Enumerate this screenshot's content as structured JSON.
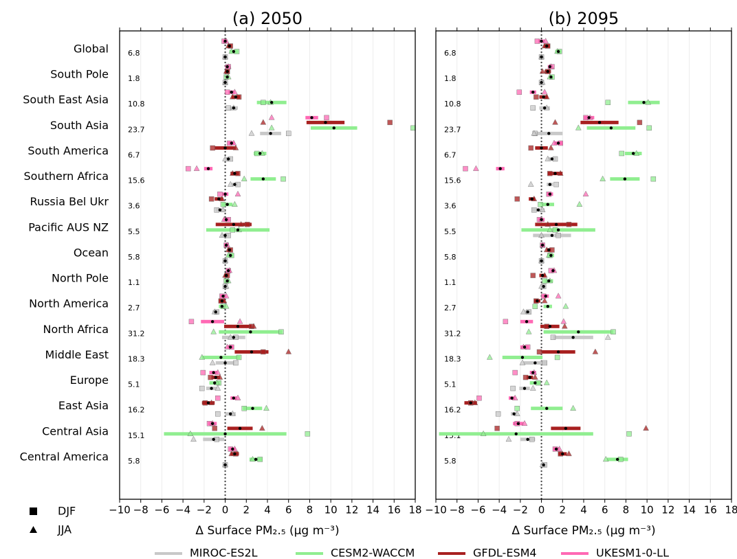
{
  "chart_data": [
    {
      "type": "dot_range",
      "title": "(a) 2050",
      "xlabel": "Δ Surface PM₂.₅ (μg m⁻³)",
      "djf_label": "DJF",
      "jja_label": "JJA",
      "categories": [
        "Global",
        "South Pole",
        "South East Asia",
        "South Asia",
        "South America",
        "Southern Africa",
        "Russia Bel Ukr",
        "Pacific AUS NZ",
        "Ocean",
        "North Pole",
        "North America",
        "North Africa",
        "Middle East",
        "Europe",
        "East Asia",
        "Central Asia",
        "Central America"
      ],
      "region_values": [
        6.8,
        1.8,
        10.8,
        23.7,
        6.7,
        15.6,
        3.6,
        5.5,
        5.8,
        1.1,
        2.7,
        31.2,
        18.3,
        5.1,
        16.2,
        15.1,
        5.8
      ],
      "xlim": [
        -10,
        18
      ],
      "xticks": [
        {
          "value": -10,
          "label": "−10"
        },
        {
          "value": -8,
          "label": "−8"
        },
        {
          "value": -6,
          "label": "−6"
        },
        {
          "value": -4,
          "label": "−4"
        },
        {
          "value": -2,
          "label": "−2"
        },
        0,
        2,
        4,
        6,
        8,
        10,
        12,
        14,
        16,
        18
      ],
      "series": [
        {
          "name": "MIROC-ES2L",
          "color": "#c8c8c8",
          "values": [
            0,
            0,
            0.8,
            4.3,
            0.3,
            0.9,
            -0.5,
            0,
            0,
            0,
            -0.9,
            0.8,
            0,
            -1.3,
            0.5,
            -1.1,
            0
          ],
          "errors": [
            0.2,
            0.1,
            0.4,
            1,
            0.3,
            0.3,
            0.4,
            0.4,
            0.2,
            0.1,
            0.3,
            1.1,
            0.9,
            0.5,
            0.5,
            1,
            0.1
          ],
          "djf": [
            0,
            0,
            0.3,
            6,
            0.5,
            1.2,
            -0.8,
            0.3,
            0,
            0,
            -0.8,
            1,
            1,
            -2.2,
            -0.7,
            -0.8,
            0
          ],
          "jja": [
            0,
            0,
            0.8,
            2.5,
            0,
            0.5,
            -0.2,
            -0.3,
            0,
            0.1,
            -1,
            0.5,
            -1.2,
            -0.7,
            0.7,
            -3,
            0
          ]
        },
        {
          "name": "CESM2-WACCM",
          "color": "#90ee90",
          "values": [
            0.8,
            0.2,
            4.4,
            10.3,
            3.3,
            3.6,
            0.2,
            1.2,
            0.5,
            0.2,
            -0.3,
            2.4,
            -0.4,
            -1,
            2.6,
            0,
            2.9
          ],
          "errors": [
            0.4,
            0.1,
            1.4,
            2.2,
            0.6,
            1.2,
            0.5,
            3,
            0.3,
            0.2,
            0.3,
            3,
            1.8,
            0.5,
            0.9,
            5.8,
            0.6
          ],
          "djf": [
            1.1,
            0.1,
            3.6,
            17.8,
            3,
            5.5,
            -0.2,
            0.7,
            0.6,
            0.1,
            -0.2,
            5.3,
            1.3,
            -0.6,
            1.8,
            7.8,
            3.3
          ],
          "jja": [
            0.6,
            0.3,
            4.3,
            4.4,
            3.5,
            1.8,
            0.9,
            1.3,
            0.3,
            0.3,
            0.1,
            -1.1,
            -2.2,
            -0.8,
            3.9,
            -3.3,
            2.6
          ]
        },
        {
          "name": "GFDL-ESM4",
          "color": "#a82020",
          "values": [
            0.4,
            0.2,
            1,
            9.5,
            0,
            0.9,
            -0.6,
            0.8,
            0.4,
            0.1,
            -0.3,
            1.2,
            2.5,
            -0.9,
            -1.6,
            1.4,
            0.9
          ],
          "errors": [
            0.2,
            0.2,
            0.4,
            1.8,
            1,
            0.4,
            0.4,
            1.7,
            0.2,
            0.2,
            0.3,
            1.3,
            1.6,
            0.4,
            0.6,
            1.2,
            0.4
          ],
          "djf": [
            0.5,
            0.2,
            1.3,
            15.6,
            -1.2,
            1.2,
            -1.3,
            2.1,
            0.5,
            0.2,
            -0.4,
            2.5,
            3.6,
            -1.4,
            -1.9,
            -1,
            1
          ],
          "jja": [
            0.3,
            0.1,
            0.7,
            3.6,
            1,
            0.7,
            -0.3,
            1.5,
            0.3,
            0,
            -0.1,
            2.7,
            6,
            -0.5,
            -1.3,
            3.5,
            0.6
          ]
        },
        {
          "name": "UKESM1-0-LL",
          "color": "#ff69b4",
          "values": [
            0,
            0.2,
            0.6,
            8.2,
            0.6,
            -1.6,
            0,
            0.1,
            0.1,
            0.3,
            -0.2,
            -1.2,
            0.5,
            -1.1,
            0.8,
            -1.2,
            0.7
          ],
          "errors": [
            0.2,
            0.2,
            0.3,
            0.6,
            0.3,
            0.4,
            0.3,
            0.3,
            0.2,
            0.2,
            0.3,
            1.1,
            0.3,
            0.4,
            0.3,
            0.4,
            0.3
          ],
          "djf": [
            -0.1,
            0.3,
            0.2,
            9.6,
            0.4,
            -3.5,
            -0.5,
            0.3,
            0.1,
            0.3,
            -0.3,
            -3.2,
            0.6,
            -2.1,
            -0.7,
            -1.5,
            0.5
          ],
          "jja": [
            0.1,
            0.3,
            0.9,
            4.4,
            0.8,
            -2.7,
            1.2,
            -0.1,
            0.2,
            0.4,
            0.1,
            1.4,
            0.2,
            -0.7,
            1.2,
            -1.2,
            0.9
          ]
        }
      ]
    },
    {
      "type": "dot_range",
      "title": "(b) 2095",
      "xlabel": "Δ Surface PM₂.₅ (μg m⁻³)",
      "region_values": [
        6.8,
        1.8,
        10.8,
        23.7,
        6.7,
        15.6,
        3.6,
        5.5,
        5.8,
        1.1,
        2.7,
        31.2,
        18.3,
        5.1,
        16.2,
        15.1,
        5.8
      ],
      "xlim": [
        -10,
        18
      ],
      "xticks": [
        {
          "value": -10,
          "label": "−10"
        },
        {
          "value": -8,
          "label": "−8"
        },
        {
          "value": -6,
          "label": "−6"
        },
        {
          "value": -4,
          "label": "−4"
        },
        {
          "value": -2,
          "label": "−2"
        },
        0,
        2,
        4,
        6,
        8,
        10,
        12,
        14,
        16,
        18
      ],
      "series": [
        {
          "color": "#c8c8c8",
          "values": [
            0,
            0,
            0.3,
            0.7,
            1,
            0.8,
            -0.3,
            1,
            0,
            0.2,
            -1.3,
            3,
            -0.6,
            -1.6,
            -2.6,
            -1.3,
            0.2
          ],
          "errors": [
            0.2,
            0.1,
            0.5,
            1.3,
            0.4,
            0.3,
            0.6,
            1.8,
            0.2,
            0.2,
            0.3,
            1.9,
            1.1,
            0.5,
            0.3,
            0.7,
            0.2
          ],
          "djf": [
            0,
            0,
            -0.8,
            -0.6,
            1.3,
            1.4,
            -0.7,
            1.6,
            0,
            0.2,
            -1.2,
            1.1,
            0.3,
            -2.7,
            -4.1,
            -0.9,
            0.3
          ],
          "jja": [
            0,
            0.1,
            0.5,
            -0.7,
            0.6,
            -1,
            0.1,
            0,
            0,
            0,
            -1.7,
            6.3,
            -1.8,
            -0.8,
            -2.3,
            -3.1,
            0.1
          ]
        },
        {
          "color": "#90ee90",
          "values": [
            1.6,
            0.9,
            9.7,
            6.6,
            8.7,
            7.9,
            0.6,
            1.6,
            0.9,
            0.7,
            0.6,
            3.5,
            -1.8,
            -0.6,
            0.5,
            -2.4,
            7.2
          ],
          "errors": [
            0.3,
            0.2,
            1.5,
            2.3,
            0.8,
            1.4,
            0.6,
            3.5,
            0.3,
            0.4,
            0.4,
            3.3,
            1.9,
            0.5,
            1.5,
            7.3,
            1
          ],
          "djf": [
            1.7,
            1,
            6.3,
            10.2,
            7.6,
            10.6,
            -0.1,
            1.3,
            0.8,
            0.3,
            -0.6,
            6.8,
            1.5,
            -0.3,
            -2.3,
            8.3,
            7.5
          ],
          "jja": [
            1.5,
            0.8,
            10.1,
            3.5,
            9,
            5.8,
            3.6,
            0.8,
            0.7,
            0.8,
            2.3,
            -1.2,
            -4.9,
            0.5,
            3,
            -5.5,
            6.1
          ]
        },
        {
          "color": "#a82020",
          "values": [
            0.5,
            0.6,
            0.2,
            5.5,
            0,
            1.3,
            -0.9,
            1.4,
            0.7,
            0.1,
            -0.4,
            0.8,
            1.6,
            -1.1,
            -6.7,
            2.3,
            2
          ],
          "errors": [
            0.3,
            0.3,
            0.4,
            1.8,
            0.6,
            0.7,
            0.3,
            2,
            0.2,
            0.3,
            0.3,
            0.9,
            1.6,
            0.3,
            0.6,
            1.4,
            0.4
          ],
          "djf": [
            0.6,
            0.6,
            -0.5,
            9.3,
            -1,
            0.8,
            -2.3,
            2.6,
            1,
            -0.8,
            -0.5,
            0.5,
            -0.2,
            -1.5,
            -6.7,
            -4.2,
            1.8
          ],
          "jja": [
            0.3,
            0.1,
            0.5,
            1.3,
            0.9,
            1.8,
            -0.7,
            0.6,
            0.5,
            0.3,
            0.3,
            2.2,
            5.1,
            -0.6,
            -6.3,
            9.9,
            2.6
          ]
        },
        {
          "color": "#ff69b4",
          "values": [
            0,
            0.8,
            -0.8,
            4.5,
            1.6,
            -3.9,
            0.8,
            0,
            0.1,
            1.1,
            0.4,
            -1.4,
            -1.6,
            -0.8,
            -2.8,
            -2.2,
            1.4
          ],
          "errors": [
            0.3,
            0.2,
            0.3,
            0.5,
            0.4,
            0.4,
            0.3,
            0.3,
            0.2,
            0.2,
            0.3,
            0.6,
            0.4,
            0.3,
            0.3,
            0.5,
            0.3
          ],
          "djf": [
            -0.4,
            1,
            -2.1,
            4.2,
            1.8,
            -7.2,
            0.7,
            -0.2,
            0.1,
            0.9,
            0.2,
            -3.4,
            -1.3,
            -2.5,
            -5.9,
            -2.3,
            1.3
          ],
          "jja": [
            0.4,
            0.9,
            0.3,
            4.6,
            1.2,
            -6.2,
            4.2,
            0,
            0.1,
            1.2,
            1.6,
            2.1,
            -1.7,
            -0.7,
            -2.5,
            -1.6,
            1.7
          ]
        }
      ]
    }
  ]
}
